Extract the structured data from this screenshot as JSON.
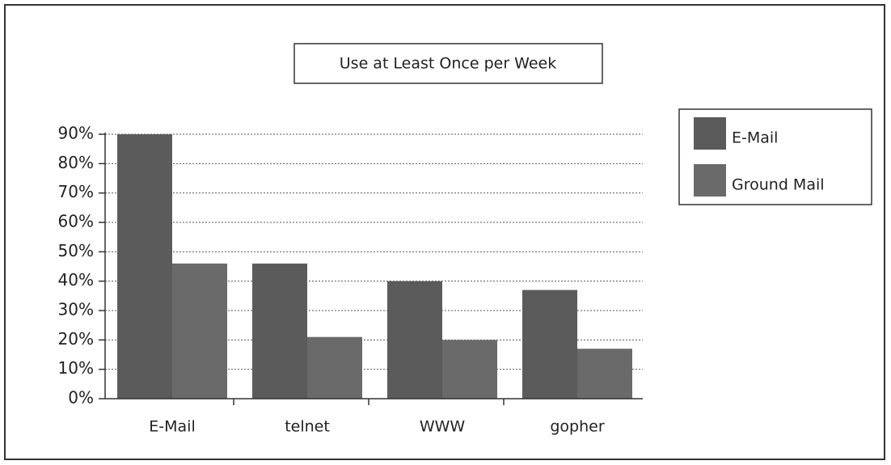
{
  "chart_data": {
    "type": "bar",
    "title": "Use at Least Once per Week",
    "categories": [
      "E-Mail",
      "telnet",
      "WWW",
      "gopher"
    ],
    "series": [
      {
        "name": "E-Mail",
        "color": "#5b5b5b",
        "values": [
          90,
          46,
          40,
          37
        ]
      },
      {
        "name": "Ground Mail",
        "color": "#6a6a6a",
        "values": [
          46,
          21,
          20,
          17
        ]
      }
    ],
    "ylim": [
      0,
      90
    ],
    "yticks": [
      {
        "value": 0,
        "label": "0%"
      },
      {
        "value": 10,
        "label": "10%"
      },
      {
        "value": 20,
        "label": "20%"
      },
      {
        "value": 30,
        "label": "30%"
      },
      {
        "value": 40,
        "label": "40%"
      },
      {
        "value": 50,
        "label": "50%"
      },
      {
        "value": 60,
        "label": "60%"
      },
      {
        "value": 70,
        "label": "70%"
      },
      {
        "value": 80,
        "label": "80%"
      },
      {
        "value": 90,
        "label": "90%"
      }
    ],
    "grid": true,
    "legend": "right"
  }
}
